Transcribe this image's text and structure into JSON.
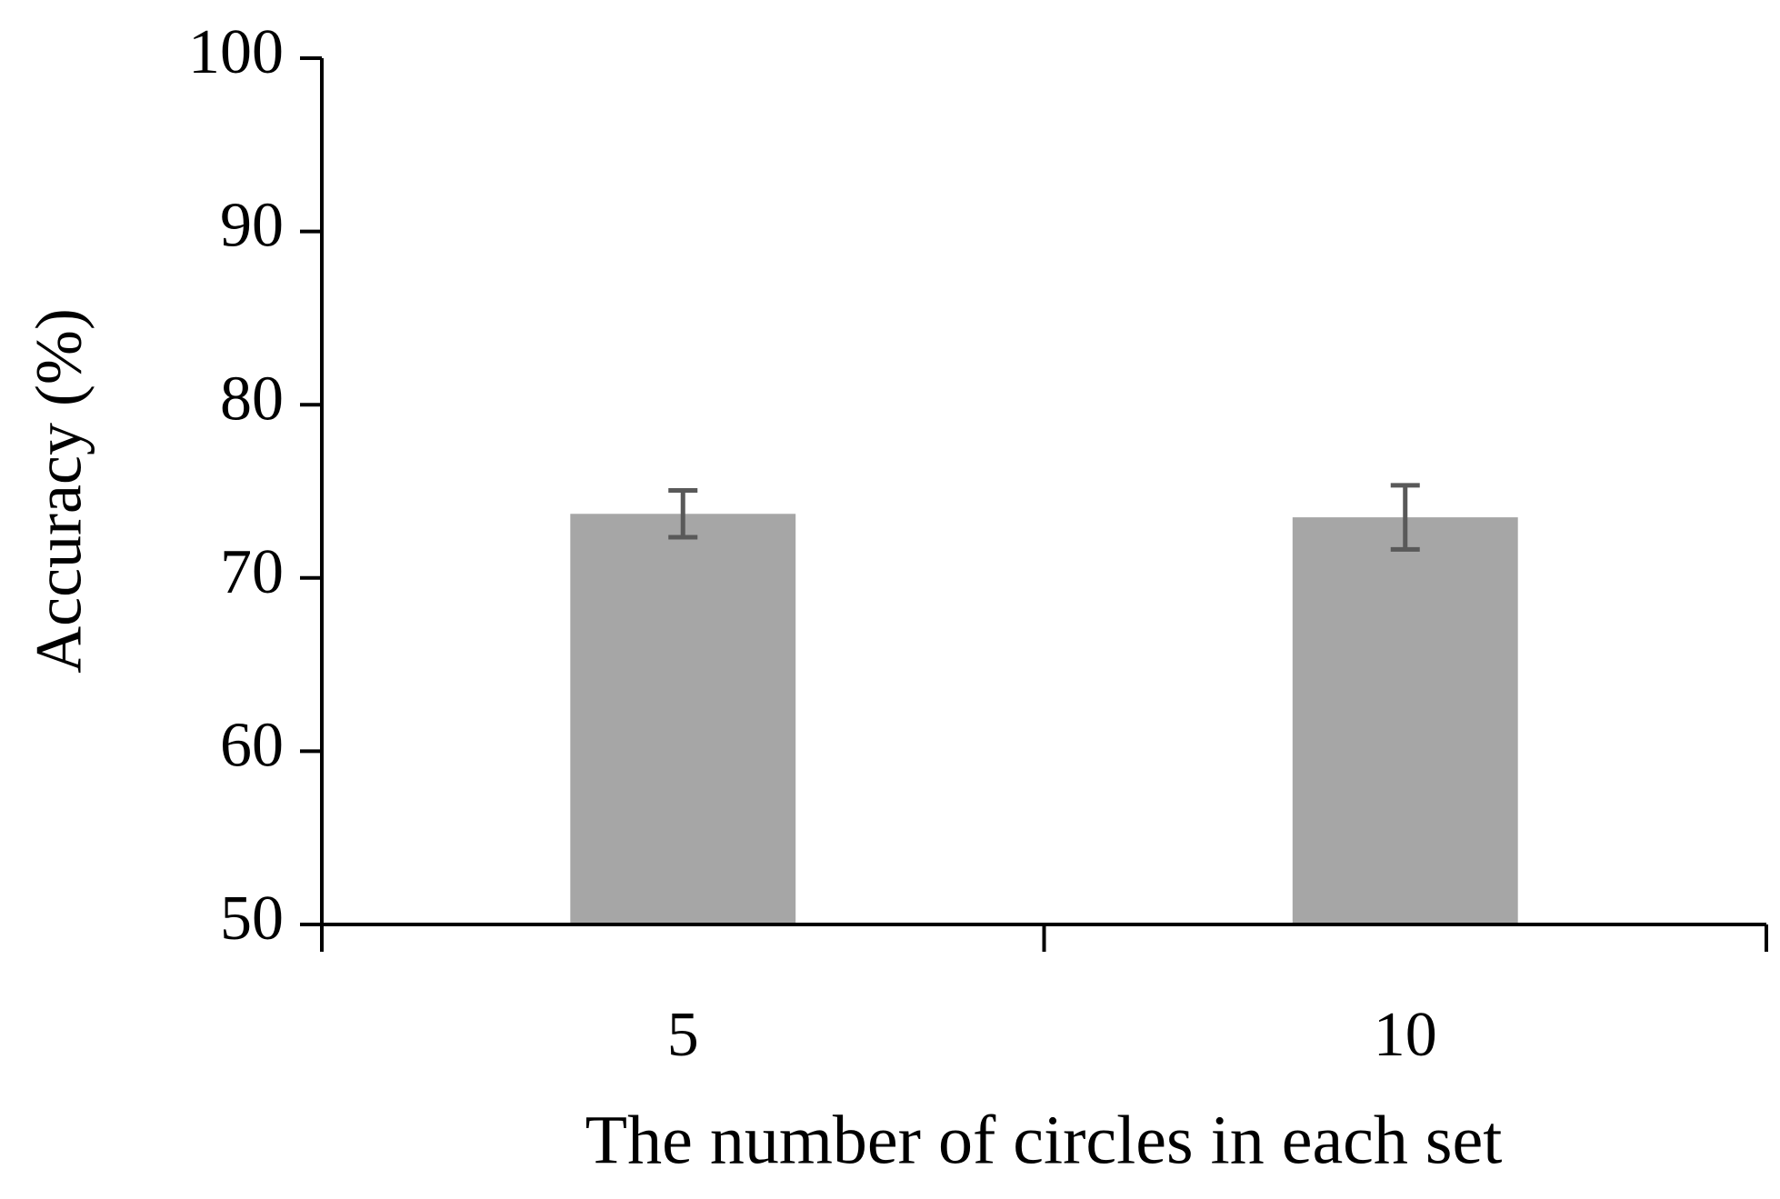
{
  "chart_data": {
    "type": "bar",
    "x_label": "The number of circles in each set",
    "y_label": "Accuracy (%)",
    "categories": [
      "5",
      "10"
    ],
    "values": [
      73.7,
      73.5
    ],
    "errors": [
      1.35,
      1.85
    ],
    "color": "#a6a6a6",
    "error_color": "#595959",
    "ylim": [
      50,
      100
    ],
    "yticks": [
      50,
      60,
      70,
      80,
      90,
      100
    ],
    "grid": false
  }
}
